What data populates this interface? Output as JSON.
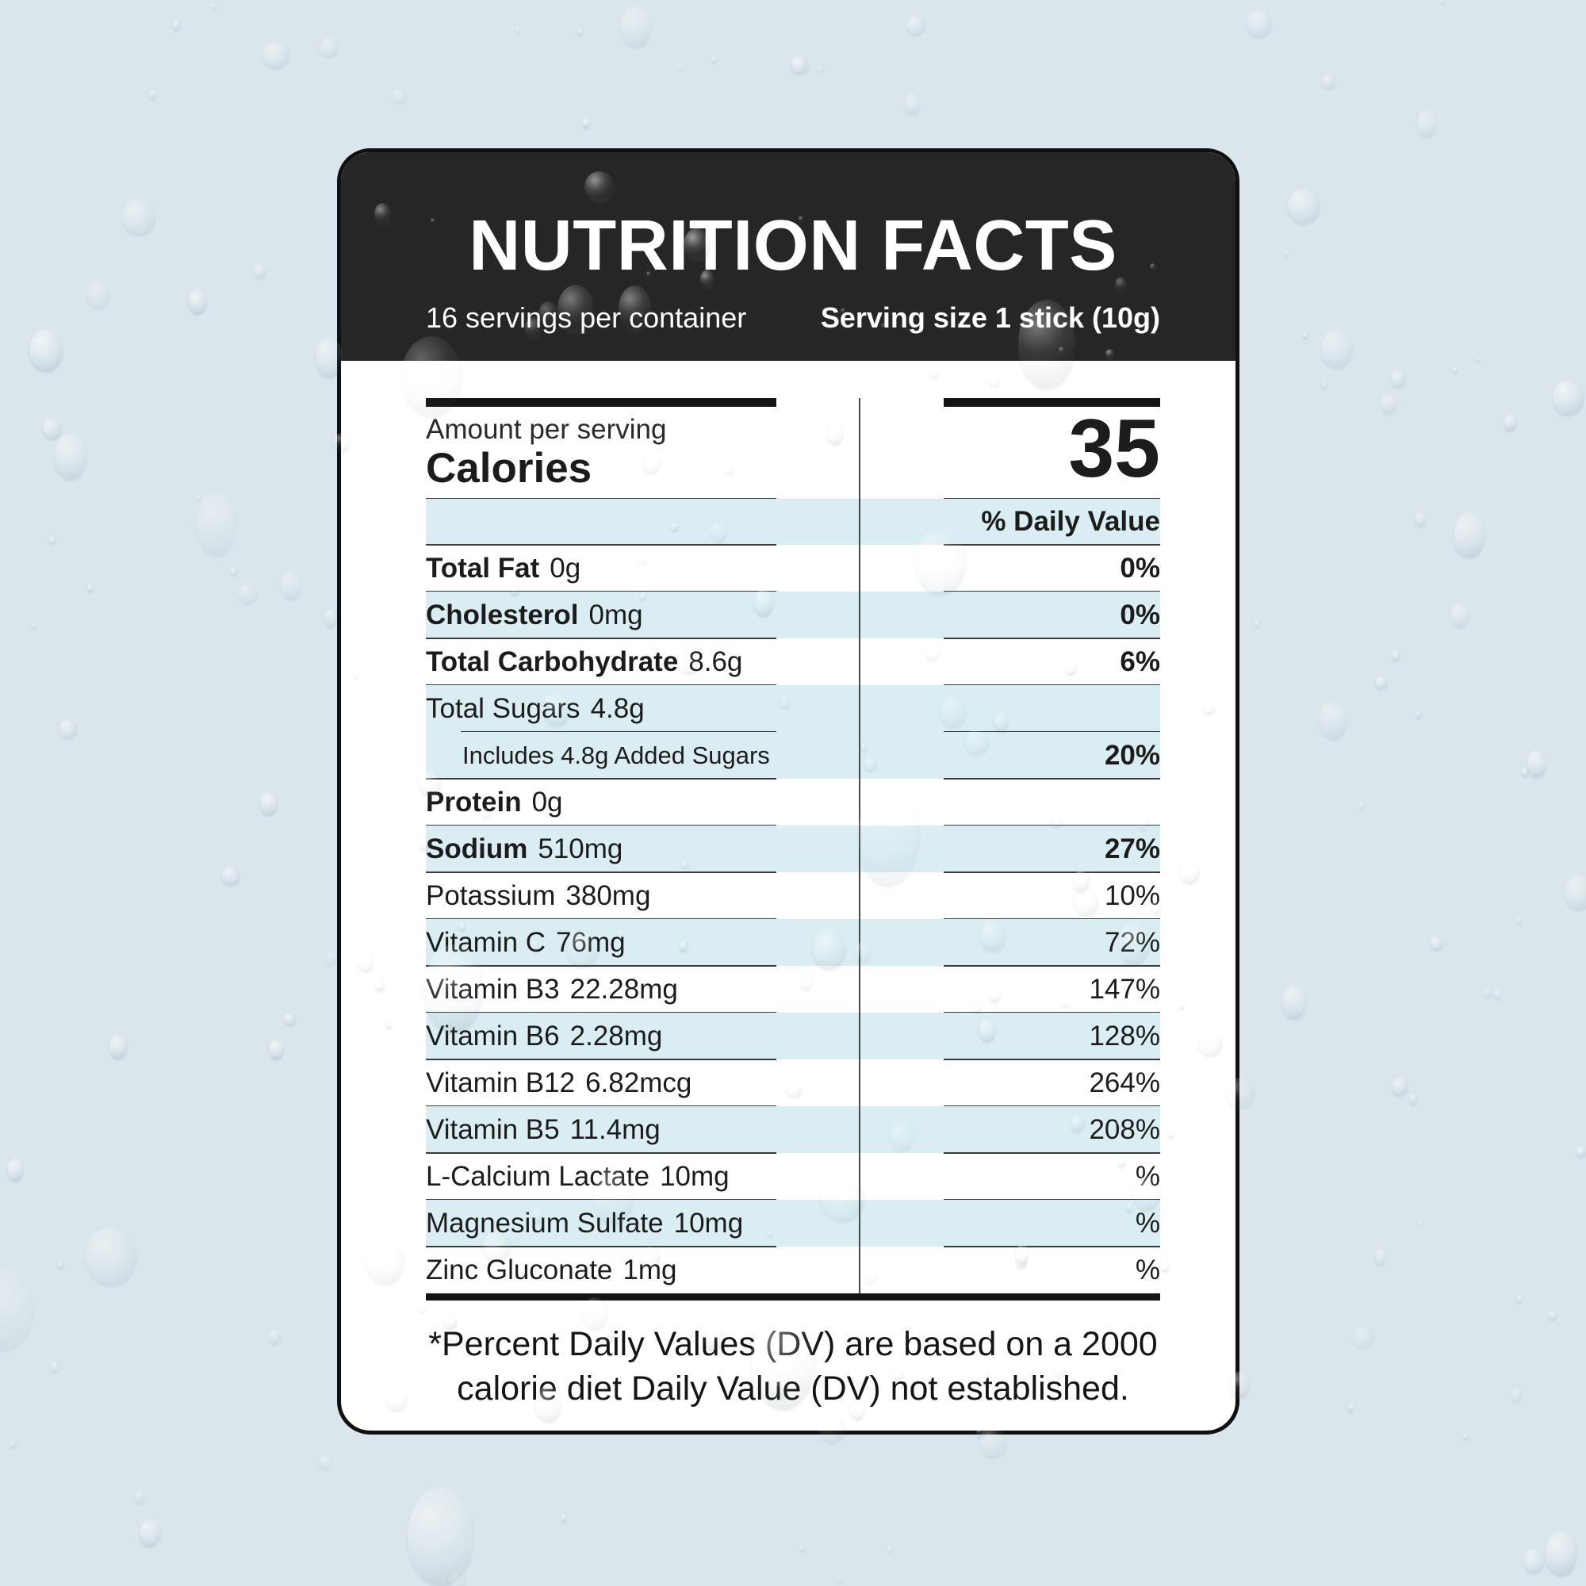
{
  "colors": {
    "page_background": "#dbe6ec",
    "label_background": "#ffffff",
    "header_background": "#262626",
    "header_text": "#ffffff",
    "row_highlight": "#d9edf2",
    "text": "#1c1c1c",
    "rule_line": "#3a3a3a"
  },
  "label": {
    "title": "NUTRITION FACTS",
    "servings_per_container": "16 servings per container",
    "serving_size": "Serving size 1 stick (10g)",
    "calories": {
      "amount_per_serving_label": "Amount per serving",
      "calories_label": "Calories",
      "value": "35"
    },
    "daily_value_header": "% Daily Value",
    "rows": [
      {
        "name": "Total Fat",
        "amount": "0g",
        "daily_value": "0%",
        "name_bold": true,
        "dv_bold": true,
        "highlight": false,
        "indent": false,
        "sub_divider": false
      },
      {
        "name": "Cholesterol",
        "amount": "0mg",
        "daily_value": "0%",
        "name_bold": true,
        "dv_bold": true,
        "highlight": true,
        "indent": false,
        "sub_divider": false
      },
      {
        "name": "Total Carbohydrate",
        "amount": "8.6g",
        "daily_value": "6%",
        "name_bold": true,
        "dv_bold": true,
        "highlight": false,
        "indent": false,
        "sub_divider": false
      },
      {
        "name": "Total Sugars",
        "amount": "4.8g",
        "daily_value": "",
        "name_bold": false,
        "dv_bold": false,
        "highlight": true,
        "indent": false,
        "sub_divider": true
      },
      {
        "name": "Includes 4.8g Added Sugars",
        "amount": "",
        "daily_value": "20%",
        "name_bold": false,
        "dv_bold": true,
        "highlight": true,
        "indent": true,
        "sub_divider": false
      },
      {
        "name": "Protein",
        "amount": "0g",
        "daily_value": "",
        "name_bold": true,
        "dv_bold": false,
        "highlight": false,
        "indent": false,
        "sub_divider": false
      },
      {
        "name": "Sodium",
        "amount": "510mg",
        "daily_value": "27%",
        "name_bold": true,
        "dv_bold": true,
        "highlight": true,
        "indent": false,
        "sub_divider": false
      },
      {
        "name": "Potassium",
        "amount": "380mg",
        "daily_value": "10%",
        "name_bold": false,
        "dv_bold": false,
        "highlight": false,
        "indent": false,
        "sub_divider": false
      },
      {
        "name": "Vitamin C",
        "amount": "76mg",
        "daily_value": "72%",
        "name_bold": false,
        "dv_bold": false,
        "highlight": true,
        "indent": false,
        "sub_divider": false
      },
      {
        "name": "Vitamin B3",
        "amount": "22.28mg",
        "daily_value": "147%",
        "name_bold": false,
        "dv_bold": false,
        "highlight": false,
        "indent": false,
        "sub_divider": false
      },
      {
        "name": "Vitamin B6",
        "amount": "2.28mg",
        "daily_value": "128%",
        "name_bold": false,
        "dv_bold": false,
        "highlight": true,
        "indent": false,
        "sub_divider": false
      },
      {
        "name": "Vitamin B12",
        "amount": "6.82mcg",
        "daily_value": "264%",
        "name_bold": false,
        "dv_bold": false,
        "highlight": false,
        "indent": false,
        "sub_divider": false
      },
      {
        "name": "Vitamin B5",
        "amount": "11.4mg",
        "daily_value": "208%",
        "name_bold": false,
        "dv_bold": false,
        "highlight": true,
        "indent": false,
        "sub_divider": false
      },
      {
        "name": "L-Calcium Lactate",
        "amount": "10mg",
        "daily_value": "%",
        "name_bold": false,
        "dv_bold": false,
        "highlight": false,
        "indent": false,
        "sub_divider": false
      },
      {
        "name": "Magnesium Sulfate",
        "amount": "10mg",
        "daily_value": "%",
        "name_bold": false,
        "dv_bold": false,
        "highlight": true,
        "indent": false,
        "sub_divider": false
      },
      {
        "name": "Zinc Gluconate",
        "amount": "1mg",
        "daily_value": "%",
        "name_bold": false,
        "dv_bold": false,
        "highlight": false,
        "indent": false,
        "sub_divider": false
      }
    ],
    "footnote_lines": [
      "*Percent Daily Values (DV) are based on a 2000",
      "calorie diet Daily Value (DV) not established."
    ]
  }
}
